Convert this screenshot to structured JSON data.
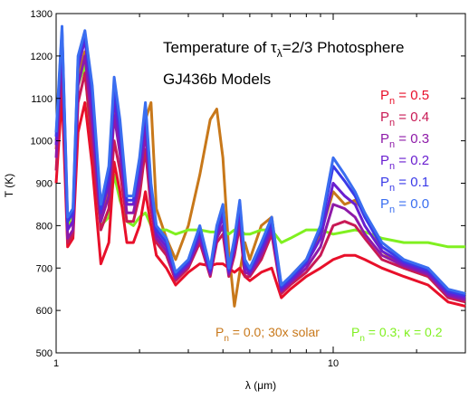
{
  "chart_data": {
    "type": "line",
    "title": [
      "Temperature of τ",
      "λ",
      "=2/3 Photosphere"
    ],
    "subtitle": "GJ436b Models",
    "xlabel": "λ (μm)",
    "ylabel": "T (K)",
    "xscale": "log",
    "xlim": [
      1,
      30
    ],
    "ylim": [
      500,
      1300
    ],
    "xticks": [
      {
        "value": 1,
        "label": "1"
      },
      {
        "value": 10,
        "label": "10"
      }
    ],
    "yticks": [
      500,
      600,
      700,
      800,
      900,
      1000,
      1100,
      1200,
      1300
    ],
    "legend": [
      {
        "name": "P",
        "sub": "n",
        "value": " = 0.5",
        "color": "#e8102a"
      },
      {
        "name": "P",
        "sub": "n",
        "value": " = 0.4",
        "color": "#c81a55"
      },
      {
        "name": "P",
        "sub": "n",
        "value": " = 0.3",
        "color": "#8e1aa8"
      },
      {
        "name": "P",
        "sub": "n",
        "value": " = 0.2",
        "color": "#6a1fd0"
      },
      {
        "name": "P",
        "sub": "n",
        "value": " = 0.1",
        "color": "#3a3ae8"
      },
      {
        "name": "P",
        "sub": "n",
        "value": " = 0.0",
        "color": "#3a6ef0"
      }
    ],
    "annotations": [
      {
        "name": "P",
        "sub": "n",
        "value": " = 0.0; 30x solar",
        "color": "#c8781a"
      },
      {
        "name": "P",
        "sub": "n",
        "value": " = 0.3; κ = 0.2",
        "color": "#80f020"
      }
    ],
    "series": [
      {
        "color": "#3a6ef0",
        "x": [
          1.0,
          1.05,
          1.1,
          1.15,
          1.2,
          1.27,
          1.35,
          1.45,
          1.55,
          1.62,
          1.7,
          1.8,
          1.9,
          2.0,
          2.1,
          2.2,
          2.3,
          2.5,
          2.7,
          3.0,
          3.3,
          3.6,
          3.8,
          4.0,
          4.2,
          4.4,
          4.6,
          4.8,
          5.0,
          5.5,
          6.0,
          6.5,
          7.0,
          8.0,
          9.0,
          10.0,
          11.0,
          12.0,
          13.0,
          15.0,
          18.0,
          22.0,
          26.0,
          30.0
        ],
        "y": [
          1020,
          1270,
          820,
          840,
          1200,
          1260,
          1130,
          850,
          940,
          1150,
          1050,
          870,
          870,
          960,
          1090,
          900,
          800,
          770,
          690,
          720,
          800,
          700,
          800,
          850,
          700,
          770,
          860,
          720,
          700,
          760,
          820,
          660,
          680,
          720,
          800,
          960,
          920,
          880,
          830,
          760,
          720,
          700,
          650,
          640
        ]
      },
      {
        "color": "#3a3ae8",
        "x": [
          1.0,
          1.05,
          1.1,
          1.15,
          1.2,
          1.27,
          1.35,
          1.45,
          1.55,
          1.62,
          1.7,
          1.8,
          1.9,
          2.0,
          2.1,
          2.2,
          2.3,
          2.5,
          2.7,
          3.0,
          3.3,
          3.6,
          3.8,
          4.0,
          4.2,
          4.4,
          4.6,
          4.8,
          5.0,
          5.5,
          6.0,
          6.5,
          7.0,
          8.0,
          9.0,
          10.0,
          11.0,
          12.0,
          13.0,
          15.0,
          18.0,
          22.0,
          26.0,
          30.0
        ],
        "y": [
          1010,
          1260,
          810,
          830,
          1190,
          1250,
          1110,
          840,
          920,
          1130,
          1030,
          860,
          860,
          950,
          1080,
          890,
          790,
          760,
          685,
          715,
          790,
          695,
          790,
          840,
          695,
          760,
          850,
          710,
          695,
          750,
          810,
          655,
          675,
          715,
          790,
          940,
          905,
          870,
          820,
          750,
          715,
          695,
          645,
          635
        ]
      },
      {
        "color": "#6a1fd0",
        "x": [
          1.0,
          1.05,
          1.1,
          1.15,
          1.2,
          1.27,
          1.35,
          1.45,
          1.55,
          1.62,
          1.7,
          1.8,
          1.9,
          2.0,
          2.1,
          2.2,
          2.3,
          2.5,
          2.7,
          3.0,
          3.3,
          3.6,
          3.8,
          4.0,
          4.2,
          4.4,
          4.6,
          4.8,
          5.0,
          5.5,
          6.0,
          6.5,
          7.0,
          8.0,
          9.0,
          10.0,
          11.0,
          12.0,
          13.0,
          15.0,
          18.0,
          22.0,
          26.0,
          30.0
        ],
        "y": [
          990,
          1250,
          790,
          810,
          1170,
          1240,
          1080,
          830,
          900,
          1100,
          1000,
          850,
          850,
          930,
          1060,
          880,
          780,
          750,
          680,
          710,
          780,
          690,
          780,
          820,
          690,
          750,
          840,
          700,
          690,
          740,
          800,
          650,
          670,
          710,
          770,
          900,
          870,
          850,
          800,
          740,
          710,
          690,
          640,
          630
        ]
      },
      {
        "color": "#8e1aa8",
        "x": [
          1.0,
          1.05,
          1.1,
          1.15,
          1.2,
          1.27,
          1.35,
          1.45,
          1.55,
          1.62,
          1.7,
          1.8,
          1.9,
          2.0,
          2.1,
          2.2,
          2.3,
          2.5,
          2.7,
          3.0,
          3.3,
          3.6,
          3.8,
          4.0,
          4.2,
          4.4,
          4.6,
          4.8,
          5.0,
          5.5,
          6.0,
          6.5,
          7.0,
          8.0,
          9.0,
          10.0,
          11.0,
          12.0,
          13.0,
          15.0,
          18.0,
          22.0,
          26.0,
          30.0
        ],
        "y": [
          960,
          1220,
          770,
          790,
          1130,
          1200,
          1040,
          810,
          870,
          1060,
          970,
          830,
          830,
          900,
          1020,
          860,
          770,
          740,
          675,
          705,
          770,
          685,
          770,
          800,
          685,
          740,
          820,
          690,
          685,
          730,
          790,
          645,
          665,
          700,
          750,
          850,
          840,
          820,
          780,
          730,
          705,
          685,
          635,
          625
        ]
      },
      {
        "color": "#c81a55",
        "x": [
          1.0,
          1.05,
          1.1,
          1.15,
          1.2,
          1.27,
          1.35,
          1.45,
          1.55,
          1.62,
          1.7,
          1.8,
          1.9,
          2.0,
          2.1,
          2.2,
          2.3,
          2.5,
          2.7,
          3.0,
          3.3,
          3.6,
          3.8,
          4.0,
          4.2,
          4.4,
          4.6,
          4.8,
          5.0,
          5.5,
          6.0,
          6.5,
          7.0,
          8.0,
          9.0,
          10.0,
          11.0,
          12.0,
          13.0,
          15.0,
          18.0,
          22.0,
          26.0,
          30.0
        ],
        "y": [
          930,
          1180,
          760,
          780,
          1090,
          1160,
          990,
          790,
          840,
          1000,
          930,
          810,
          810,
          870,
          980,
          840,
          760,
          730,
          670,
          700,
          760,
          680,
          760,
          780,
          680,
          730,
          800,
          680,
          680,
          720,
          780,
          640,
          660,
          690,
          730,
          800,
          810,
          800,
          770,
          720,
          700,
          680,
          630,
          620
        ]
      },
      {
        "color": "#e8102a",
        "x": [
          1.0,
          1.05,
          1.1,
          1.15,
          1.2,
          1.27,
          1.35,
          1.45,
          1.55,
          1.62,
          1.7,
          1.8,
          1.9,
          2.0,
          2.1,
          2.2,
          2.3,
          2.5,
          2.7,
          3.0,
          3.3,
          3.6,
          3.8,
          4.0,
          4.2,
          4.4,
          4.6,
          4.8,
          5.0,
          5.5,
          6.0,
          6.5,
          7.0,
          8.0,
          9.0,
          10.0,
          11.0,
          12.0,
          13.0,
          15.0,
          18.0,
          22.0,
          26.0,
          30.0
        ],
        "y": [
          900,
          1110,
          750,
          770,
          1020,
          1090,
          940,
          710,
          760,
          950,
          880,
          760,
          760,
          800,
          880,
          800,
          730,
          700,
          660,
          690,
          710,
          705,
          710,
          710,
          700,
          690,
          700,
          680,
          670,
          690,
          700,
          630,
          650,
          680,
          700,
          720,
          730,
          730,
          720,
          700,
          680,
          660,
          620,
          610
        ]
      },
      {
        "color": "#c8781a",
        "x": [
          1.0,
          1.05,
          1.1,
          1.15,
          1.2,
          1.27,
          1.35,
          1.45,
          1.55,
          1.62,
          1.7,
          1.8,
          1.9,
          2.0,
          2.1,
          2.2,
          2.3,
          2.5,
          2.7,
          3.0,
          3.3,
          3.6,
          3.8,
          4.0,
          4.2,
          4.4,
          4.6,
          4.8,
          5.0,
          5.5,
          6.0,
          6.5,
          7.0,
          8.0,
          9.0,
          10.0,
          11.0,
          12.0,
          13.0,
          15.0,
          18.0,
          22.0,
          26.0,
          30.0
        ],
        "y": [
          980,
          1230,
          800,
          810,
          1150,
          1210,
          1060,
          820,
          880,
          1080,
          1000,
          850,
          850,
          900,
          1050,
          1090,
          840,
          770,
          720,
          800,
          920,
          1050,
          1075,
          960,
          740,
          610,
          690,
          760,
          720,
          800,
          820,
          650,
          680,
          720,
          780,
          880,
          850,
          860,
          830,
          740,
          700,
          680,
          640,
          630
        ]
      },
      {
        "color": "#80f020",
        "x": [
          1.0,
          1.05,
          1.1,
          1.15,
          1.2,
          1.27,
          1.35,
          1.45,
          1.55,
          1.62,
          1.7,
          1.8,
          1.9,
          2.0,
          2.1,
          2.2,
          2.3,
          2.5,
          2.7,
          3.0,
          3.3,
          3.6,
          3.8,
          4.0,
          4.2,
          4.4,
          4.6,
          4.8,
          5.0,
          5.5,
          6.0,
          6.5,
          7.0,
          8.0,
          9.0,
          10.0,
          11.0,
          12.0,
          13.0,
          15.0,
          18.0,
          22.0,
          26.0,
          30.0
        ],
        "y": [
          1000,
          1170,
          800,
          830,
          1130,
          1180,
          950,
          800,
          820,
          920,
          860,
          810,
          800,
          820,
          830,
          800,
          790,
          790,
          780,
          790,
          790,
          785,
          785,
          790,
          780,
          790,
          790,
          780,
          780,
          790,
          790,
          760,
          770,
          790,
          790,
          780,
          785,
          790,
          785,
          770,
          760,
          760,
          750,
          750
        ]
      }
    ]
  }
}
